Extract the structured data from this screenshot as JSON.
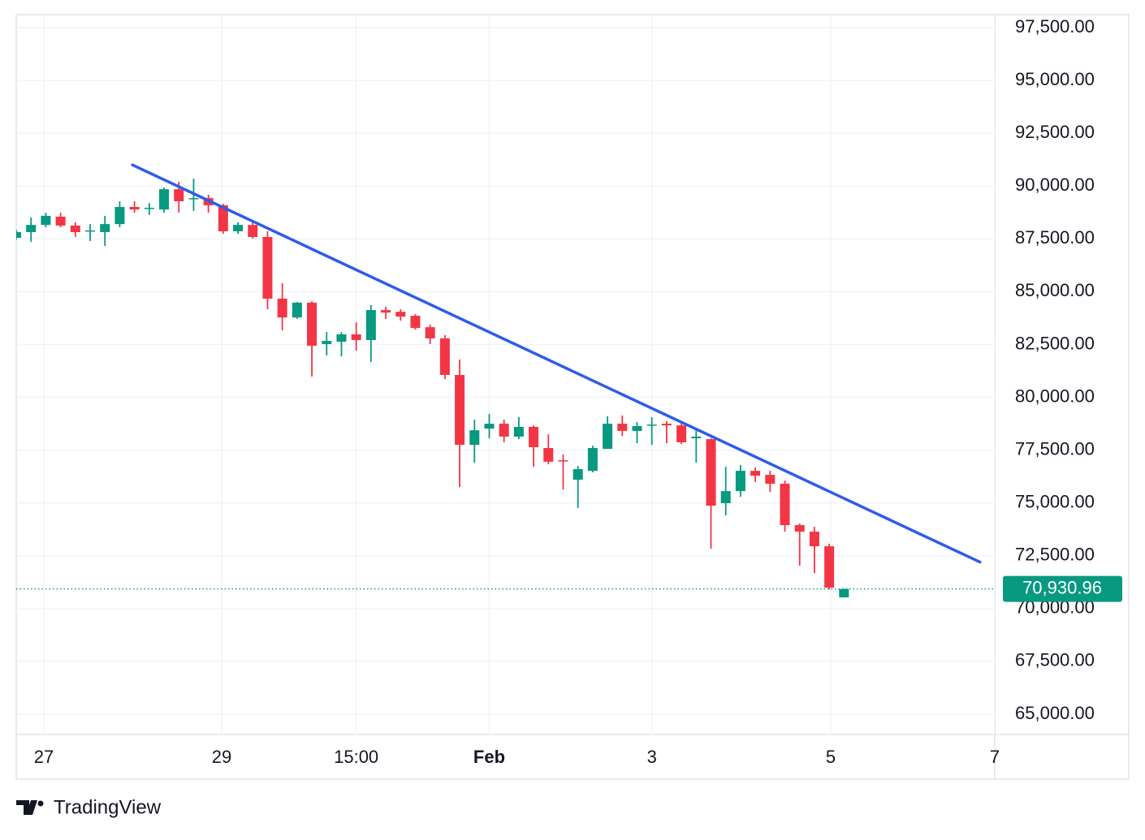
{
  "chart_data": {
    "type": "candlestick",
    "open": [
      87550,
      87820,
      88160,
      88550,
      88130,
      87860,
      87820,
      88200,
      89010,
      88930,
      88890,
      89850,
      89390,
      89430,
      89090,
      87860,
      88160,
      87590,
      84670,
      83780,
      84480,
      82520,
      82630,
      82980,
      82710,
      84130,
      84050,
      83860,
      83320,
      82790,
      81060,
      77750,
      78520,
      78750,
      78140,
      78600,
      77600,
      77020,
      76100,
      76520,
      77560,
      78750,
      78410,
      78670,
      78750,
      78670,
      78060,
      78020,
      74990,
      75560,
      76520,
      76330,
      75910,
      73950,
      73640,
      72950,
      70530
    ],
    "high": [
      87930,
      88510,
      88740,
      88740,
      88280,
      88200,
      88590,
      89280,
      89280,
      89200,
      89930,
      90200,
      90350,
      89590,
      89160,
      88280,
      88360,
      87860,
      85400,
      84510,
      84550,
      83090,
      83090,
      83550,
      84360,
      84280,
      84170,
      83940,
      83440,
      82940,
      81790,
      78940,
      79210,
      78940,
      79060,
      78670,
      78250,
      77290,
      76750,
      77710,
      79100,
      79140,
      78830,
      79060,
      78870,
      78870,
      78440,
      78060,
      76710,
      76790,
      76680,
      76520,
      76060,
      74030,
      73870,
      73070,
      70930.96
    ],
    "low": [
      87470,
      87360,
      88050,
      88050,
      87590,
      87400,
      87170,
      88050,
      88740,
      88630,
      88740,
      88740,
      88820,
      88740,
      87740,
      87740,
      87510,
      84170,
      83170,
      83710,
      80980,
      81980,
      81940,
      82210,
      81670,
      83710,
      83630,
      83210,
      82520,
      80860,
      75750,
      76910,
      78060,
      77870,
      78020,
      76710,
      76830,
      75640,
      74760,
      76450,
      77560,
      78170,
      77830,
      77750,
      77830,
      77790,
      76910,
      72830,
      74410,
      75290,
      75990,
      75520,
      73640,
      72030,
      71680,
      70910,
      70530
    ],
    "close": [
      87820,
      88160,
      88590,
      88130,
      87820,
      87900,
      88200,
      89010,
      88890,
      88970,
      89850,
      89280,
      89430,
      89090,
      87860,
      88160,
      87590,
      84670,
      83780,
      84480,
      82440,
      82670,
      82980,
      82710,
      84130,
      84010,
      83820,
      83280,
      82790,
      81060,
      77750,
      78440,
      78750,
      78140,
      78600,
      77640,
      76950,
      76980,
      76600,
      77600,
      78750,
      78410,
      78640,
      78710,
      78670,
      77870,
      78140,
      74870,
      75560,
      76520,
      76290,
      75910,
      73950,
      73640,
      72950,
      70990,
      70930.96
    ],
    "up_color": "#089981",
    "down_color": "#f23645",
    "xlim": [
      0,
      66.2
    ],
    "xticks": [
      {
        "value": 1.87,
        "label": "27"
      },
      {
        "value": 13.9,
        "label": "29"
      },
      {
        "value": 23.0,
        "label": "15:00"
      },
      {
        "value": 32.0,
        "label": "Feb"
      },
      {
        "value": 43.0,
        "label": "3"
      },
      {
        "value": 55.1,
        "label": "5"
      },
      {
        "value": 66.2,
        "label": "7"
      }
    ],
    "ylim": [
      64040,
      98115
    ],
    "yticks": [
      {
        "value": 97500,
        "label": "97,500.00"
      },
      {
        "value": 95000,
        "label": "95,000.00"
      },
      {
        "value": 92500,
        "label": "92,500.00"
      },
      {
        "value": 90000,
        "label": "90,000.00"
      },
      {
        "value": 87500,
        "label": "87,500.00"
      },
      {
        "value": 85000,
        "label": "85,000.00"
      },
      {
        "value": 82500,
        "label": "82,500.00"
      },
      {
        "value": 80000,
        "label": "80,000.00"
      },
      {
        "value": 77500,
        "label": "77,500.00"
      },
      {
        "value": 75000,
        "label": "75,000.00"
      },
      {
        "value": 72500,
        "label": "72,500.00"
      },
      {
        "value": 70000,
        "label": "70,000.00"
      },
      {
        "value": 67500,
        "label": "67,500.00"
      },
      {
        "value": 65000,
        "label": "65,000.00"
      }
    ],
    "grid": true,
    "trendline": {
      "x": [
        7.86,
        65.2
      ],
      "y": [
        91000,
        72200
      ],
      "color": "#2e5ce6"
    },
    "last_price": {
      "value": 70930.96,
      "label": "70,930.96",
      "color": "#089981"
    }
  },
  "logo": "TradingView"
}
